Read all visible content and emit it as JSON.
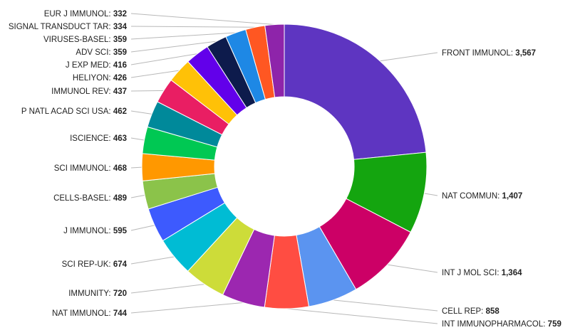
{
  "chart_data": {
    "type": "pie",
    "donut": true,
    "title": "",
    "categories": [
      "FRONT IMMUNOL",
      "NAT COMMUN",
      "INT J MOL SCI",
      "CELL REP",
      "INT IMMUNOPHARMACOL",
      "NAT IMMUNOL",
      "IMMUNITY",
      "SCI REP-UK",
      "J IMMUNOL",
      "CELLS-BASEL",
      "SCI IMMUNOL",
      "ISCIENCE",
      "P NATL ACAD SCI USA",
      "IMMUNOL REV",
      "HELIYON",
      "J EXP MED",
      "ADV SCI",
      "VIRUSES-BASEL",
      "SIGNAL TRANSDUCT TAR",
      "EUR J IMMUNOL"
    ],
    "values": [
      3567,
      1407,
      1364,
      858,
      759,
      744,
      720,
      674,
      595,
      489,
      468,
      463,
      462,
      437,
      426,
      416,
      359,
      359,
      334,
      332
    ],
    "value_labels": [
      "3,567",
      "1,407",
      "1,364",
      "858",
      "759",
      "744",
      "720",
      "674",
      "595",
      "489",
      "468",
      "463",
      "462",
      "437",
      "426",
      "416",
      "359",
      "359",
      "334",
      "332"
    ],
    "colors": [
      "#5e35c1",
      "#14a50f",
      "#cc0066",
      "#5b94f0",
      "#ff4d42",
      "#9c27b0",
      "#cddc39",
      "#00bcd4",
      "#3d5afe",
      "#8bc34a",
      "#ff9800",
      "#00c853",
      "#00899a",
      "#e91e63",
      "#ffc107",
      "#6200ea",
      "#0d1b4c",
      "#1e88e5",
      "#ff5722",
      "#8e24aa"
    ]
  }
}
